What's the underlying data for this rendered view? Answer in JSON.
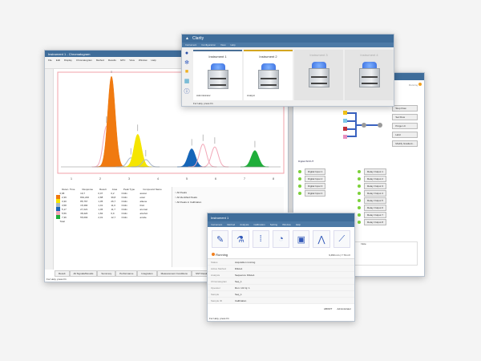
{
  "main_window": {
    "title": "Instrument 1 - Chromatogram",
    "menu": [
      "File",
      "Edit",
      "Display",
      "Chromatogram",
      "Method",
      "Results",
      "GPC",
      "View",
      "Window",
      "Help"
    ],
    "chromatogram": {
      "x_ticks": [
        1,
        2,
        3,
        4,
        5,
        6,
        7,
        8
      ],
      "y_max": 100,
      "peaks": [
        {
          "time": 2.28,
          "height": 12,
          "color": "#aab8c8",
          "fill": false
        },
        {
          "time": 2.22,
          "height": 45,
          "color": "#f2a8b8",
          "fill": false
        },
        {
          "time": 2.39,
          "height": 100,
          "color": "#f07a10",
          "fill": true
        },
        {
          "time": 3.06,
          "height": 10,
          "color": "#aab8c8",
          "fill": false
        },
        {
          "time": 3.3,
          "height": 36,
          "color": "#f5e500",
          "fill": true
        },
        {
          "time": 3.58,
          "height": 8,
          "color": "#aab8c8",
          "fill": false
        },
        {
          "time": 5.17,
          "height": 20,
          "color": "#1565b8",
          "fill": true
        },
        {
          "time": 5.56,
          "height": 25,
          "color": "#f2a8b8",
          "fill": false
        },
        {
          "time": 5.97,
          "height": 22,
          "color": "#f2a8b8",
          "fill": false
        },
        {
          "time": 7.36,
          "height": 18,
          "color": "#1fae3a",
          "fill": true
        }
      ]
    },
    "result_table": {
      "headers": [
        "Reten. Time",
        "Response",
        "Result",
        "Area",
        "Peak Type",
        "Compound Name"
      ],
      "rows": [
        [
          "0,68",
          "19,7",
          "0,07",
          "0,2",
          "Ordin",
          "acetat"
        ],
        [
          "2,39",
          "891,220",
          "2,88",
          "39,8",
          "Ordin",
          "ester"
        ],
        [
          "3,30",
          "85,767",
          "1,05",
          "26,7",
          "Ordin",
          "alkene"
        ],
        [
          "3,58",
          "15,390",
          "1,01",
          "11,0",
          "Ordin",
          "thiol"
        ],
        [
          "5,17",
          "27,221",
          "1,06",
          "11,7",
          "Ordin",
          "aromat"
        ],
        [
          "5,56",
          "38,420",
          "1,82",
          "6,9",
          "Ordin",
          "alcohol"
        ],
        [
          "7,36",
          "55,693",
          "2,01",
          "12,7",
          "Ordin",
          "amide"
        ]
      ],
      "total_label": "Total"
    },
    "tabs": [
      "Result",
      "All Signals/Results",
      "Summary",
      "Performance",
      "Integration",
      "Measurement Conditions",
      "SST Results"
    ],
    "status": "For Help, press F1",
    "side_options": [
      "All Peaks",
      "All Identified Peaks",
      "All Peaks in Calibration"
    ]
  },
  "clarity": {
    "title": "Clarity",
    "menu": [
      "Instrument",
      "Configuration",
      "View",
      "Help"
    ],
    "instruments": [
      {
        "name": "Instrument 1",
        "user": "Administrator",
        "active": true,
        "accent": "#4a6f96"
      },
      {
        "name": "Instrument 2",
        "user": "Analyst",
        "active": true,
        "accent": "#d4a520"
      },
      {
        "name": "Instrument 3",
        "user": "",
        "active": false,
        "accent": ""
      },
      {
        "name": "Instrument 4",
        "user": "",
        "active": false,
        "accent": ""
      }
    ],
    "status": "For Help, press F1"
  },
  "control": {
    "status": "Running",
    "buttons": [
      "Stop Flow",
      "Set Flow",
      "Purge LC",
      "Hold",
      "Modify Gradient..."
    ],
    "section": "Digital IN/OUT",
    "desc": [
      "Digital Input 1",
      "Digital Input 2",
      "Digital Input 3",
      "Digital Input 4"
    ],
    "outs": [
      "Relay Output 1",
      "Relay Output 2",
      "Relay Output 3",
      "Relay Output 4",
      "Relay Output 5",
      "Relay Output 6",
      "Relay Output 7",
      "Relay Output 8"
    ],
    "col_note": "Note"
  },
  "instrument1": {
    "title": "Instrument 1",
    "menu": [
      "Instrument",
      "Method",
      "Analysis",
      "Calibration",
      "Setting",
      "Window",
      "Help"
    ],
    "status": "Running",
    "disk": "9,450 min | 7.70 mV",
    "info": [
      [
        "Status",
        "Acquisition running"
      ],
      [
        "Active Method",
        "Dilute1"
      ],
      [
        "Analysis",
        "Sequence: Dilute1"
      ],
      [
        "Chromatogram",
        "Seq_1"
      ],
      [
        "Operator",
        "Run: 1/2 Inj: 1"
      ],
      [
        "Sample",
        "Seq_1"
      ],
      [
        "Sample ID",
        "Calibration"
      ]
    ],
    "buttons": [
      "ABORT",
      "Administrator"
    ],
    "footer": "For Help, press F1"
  }
}
